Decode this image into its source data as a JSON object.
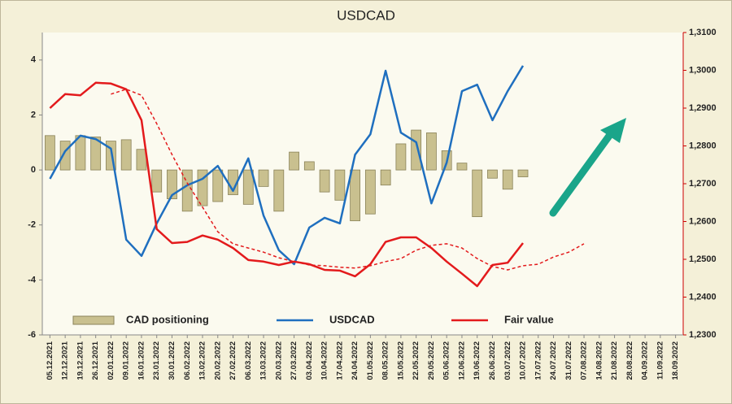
{
  "chart_data": {
    "type": "combo",
    "title": "USDCAD",
    "categories": [
      "05.12.2021",
      "12.12.2021",
      "19.12.2021",
      "26.12.2021",
      "02.01.2022",
      "09.01.2022",
      "16.01.2022",
      "23.01.2022",
      "30.01.2022",
      "06.02.2022",
      "13.02.2022",
      "20.02.2022",
      "27.02.2022",
      "06.03.2022",
      "13.03.2022",
      "20.03.2022",
      "27.03.2022",
      "03.04.2022",
      "10.04.2022",
      "17.04.2022",
      "24.04.2022",
      "01.05.2022",
      "08.05.2022",
      "15.05.2022",
      "22.05.2022",
      "29.05.2022",
      "05.06.2022",
      "12.06.2022",
      "19.06.2022",
      "26.06.2022",
      "03.07.2022",
      "10.07.2022",
      "17.07.2022",
      "24.07.2022",
      "31.07.2022",
      "07.08.2022",
      "14.08.2022",
      "21.08.2022",
      "28.08.2022",
      "04.09.2022",
      "11.09.2022",
      "18.09.2022"
    ],
    "series": [
      {
        "name": "CAD positioning",
        "kind": "bar",
        "color": "#c9c08f",
        "values": [
          1.25,
          1.05,
          1.25,
          1.2,
          1.05,
          1.1,
          0.75,
          -0.8,
          -1.05,
          -1.5,
          -1.3,
          -1.15,
          -0.9,
          -1.25,
          -0.6,
          -1.5,
          0.65,
          0.3,
          -0.8,
          -1.1,
          -1.85,
          -1.6,
          -0.55,
          0.95,
          1.45,
          1.35,
          0.7,
          0.25,
          -1.7,
          -0.3,
          -0.7,
          -0.25,
          null,
          null,
          null,
          null,
          null,
          null,
          null,
          null,
          null,
          null
        ]
      },
      {
        "name": "USDCAD",
        "kind": "line",
        "axis": "y2",
        "color": "#1f6fbf",
        "values": [
          1.2713,
          1.2786,
          1.2827,
          1.2818,
          1.2793,
          1.2552,
          1.2509,
          1.2595,
          1.267,
          1.2696,
          1.2713,
          1.2747,
          1.2681,
          1.2767,
          1.2616,
          1.2524,
          1.2487,
          1.2584,
          1.261,
          1.2595,
          1.2777,
          1.2831,
          1.2999,
          1.2835,
          1.281,
          1.2648,
          1.2756,
          1.2945,
          1.2962,
          1.2868,
          1.2945,
          1.3012,
          null,
          null,
          null,
          null,
          null,
          null,
          null,
          null,
          null,
          null
        ]
      },
      {
        "name": "Fair value",
        "kind": "line",
        "axis": "y2",
        "color": "#e31a1c",
        "values": [
          1.29,
          1.2937,
          1.2934,
          1.2967,
          1.2965,
          1.295,
          1.2868,
          1.258,
          1.2543,
          1.2546,
          1.2563,
          1.2552,
          1.253,
          1.2498,
          1.2494,
          1.2485,
          1.2494,
          1.2487,
          1.2472,
          1.247,
          1.2455,
          1.2487,
          1.2546,
          1.2558,
          1.2558,
          1.253,
          1.2494,
          1.2462,
          1.2429,
          1.2485,
          1.2491,
          1.2543,
          null,
          null,
          null,
          null,
          null,
          null,
          null,
          null,
          null,
          null
        ]
      },
      {
        "kind": "line",
        "axis": "y2",
        "dashed": true,
        "color": "#e31a1c",
        "values": [
          null,
          null,
          null,
          null,
          1.2937,
          1.295,
          1.2934,
          1.2859,
          1.2777,
          1.2702,
          1.2638,
          1.2573,
          1.2541,
          1.253,
          1.2519,
          1.2504,
          1.2494,
          1.2485,
          1.2483,
          1.2479,
          1.2477,
          1.2483,
          1.2494,
          1.2502,
          1.2524,
          1.2537,
          1.2541,
          1.253,
          1.2502,
          1.2481,
          1.2472,
          1.2483,
          1.2487,
          1.2506,
          1.2519,
          1.2541,
          null,
          null,
          null,
          null,
          null,
          null
        ]
      }
    ],
    "ylim": [
      -6,
      5
    ],
    "yticks": [
      -6,
      -4,
      -2,
      0,
      2,
      4
    ],
    "y2lim": [
      1.23,
      1.31
    ],
    "y2ticks": [
      {
        "value": 1.23,
        "label": "1,2300"
      },
      {
        "value": 1.24,
        "label": "1,2400"
      },
      {
        "value": 1.25,
        "label": "1,2500"
      },
      {
        "value": 1.26,
        "label": "1,2600"
      },
      {
        "value": 1.27,
        "label": "1,2700"
      },
      {
        "value": 1.28,
        "label": "1,2800"
      },
      {
        "value": 1.29,
        "label": "1,2900"
      },
      {
        "value": 1.3,
        "label": "1,3000"
      },
      {
        "value": 1.31,
        "label": "1,3100"
      }
    ],
    "grid": false,
    "legend": "bottom"
  }
}
